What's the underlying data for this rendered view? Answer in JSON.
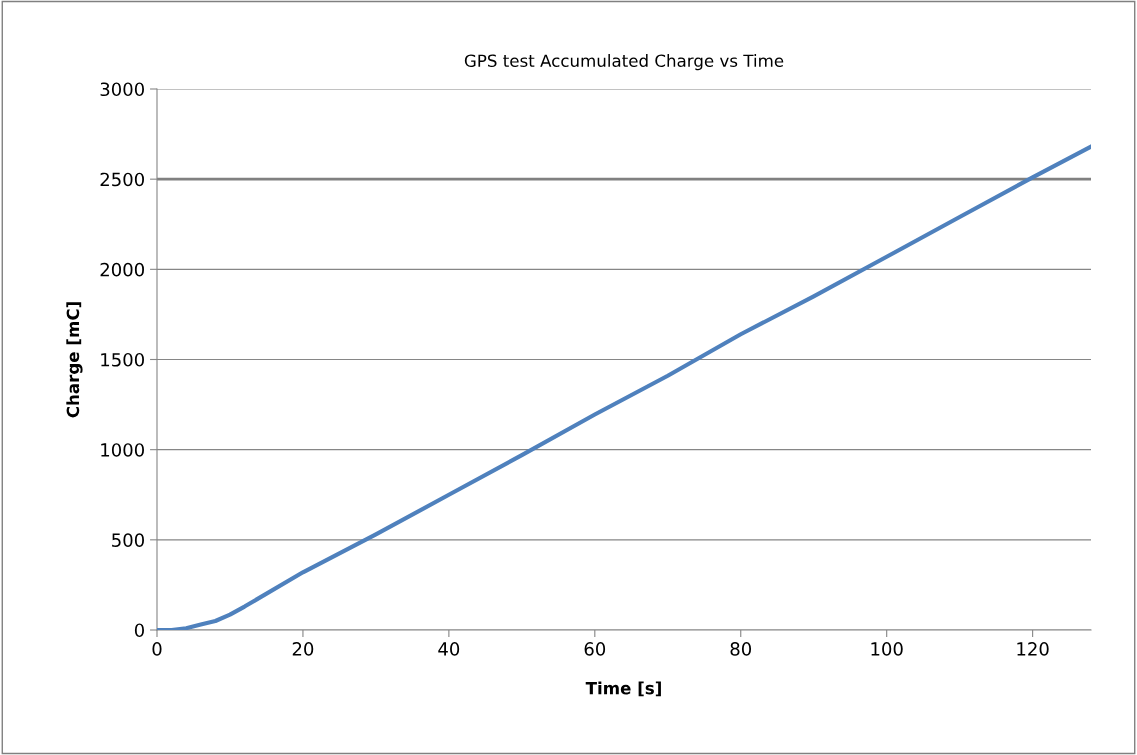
{
  "chart_data": {
    "type": "line",
    "title": "GPS test Accumulated Charge vs Time",
    "xlabel": "Time [s]",
    "ylabel": "Charge [mC]",
    "x": [
      0,
      2,
      4,
      6,
      8,
      10,
      12,
      20,
      30,
      40,
      50,
      60,
      70,
      80,
      90,
      100,
      110,
      120,
      128
    ],
    "series": [
      {
        "color": "#4f81bd",
        "values": [
          0,
          0,
          10,
          30,
          50,
          85,
          130,
          320,
          530,
          750,
          970,
          1195,
          1410,
          1640,
          1850,
          2070,
          2290,
          2510,
          2680
        ]
      }
    ],
    "xlim": [
      0,
      128
    ],
    "xticks": [
      0,
      20,
      40,
      60,
      80,
      100,
      120
    ],
    "ylim": [
      0,
      3000
    ],
    "yticks": [
      0,
      500,
      1000,
      1500,
      2000,
      2500,
      3000
    ],
    "ref_lines": [
      {
        "axis": "y",
        "value": 2500,
        "color": "#808080"
      }
    ],
    "grid": "y",
    "legend": false,
    "marker": "none",
    "line_style": "solid"
  }
}
